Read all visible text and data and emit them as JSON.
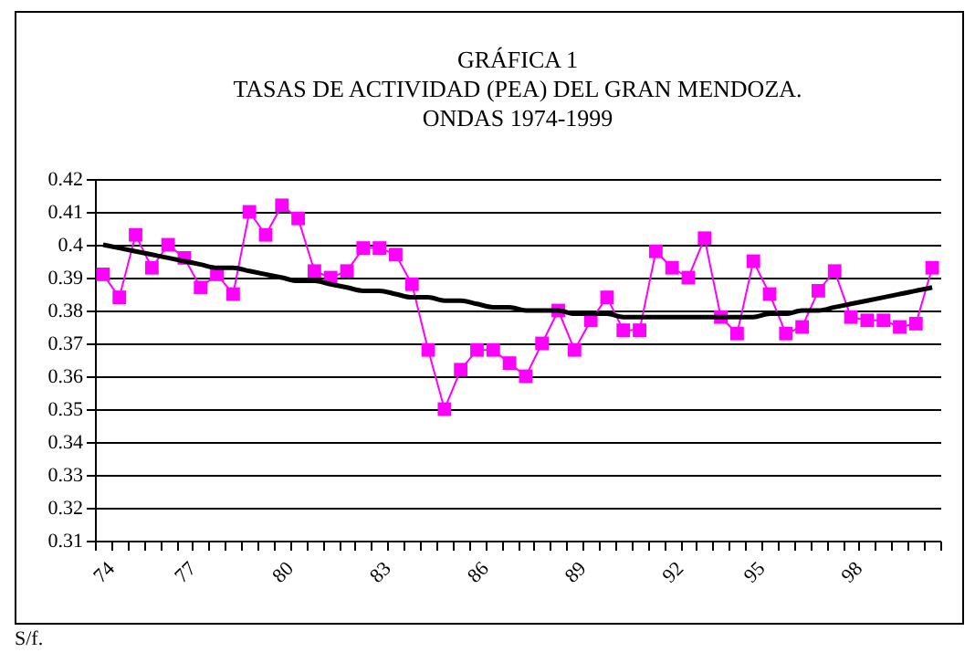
{
  "chart_data": {
    "type": "line",
    "title": "GRÁFICA 1\nTASAS DE ACTIVIDAD (PEA) DEL GRAN MENDOZA.\nONDAS 1974-1999",
    "categories": [
      "74",
      null,
      null,
      null,
      null,
      "77",
      null,
      null,
      null,
      null,
      null,
      "80",
      null,
      null,
      null,
      null,
      null,
      "83",
      null,
      null,
      null,
      null,
      null,
      "86",
      null,
      null,
      null,
      null,
      null,
      "89",
      null,
      null,
      null,
      null,
      null,
      "92",
      null,
      null,
      null,
      null,
      "95",
      null,
      null,
      null,
      null,
      null,
      "98",
      null,
      null,
      null,
      null,
      null
    ],
    "series": [
      {
        "color": "#ff00ff",
        "values": [
          0.391,
          0.384,
          0.403,
          0.393,
          0.4,
          0.396,
          0.387,
          0.391,
          0.385,
          0.41,
          0.403,
          0.412,
          0.408,
          0.392,
          0.39,
          0.392,
          0.399,
          0.399,
          0.397,
          0.388,
          0.368,
          0.35,
          0.362,
          0.368,
          0.368,
          0.364,
          0.36,
          0.37,
          0.38,
          0.368,
          0.377,
          0.384,
          0.374,
          0.374,
          0.398,
          0.393,
          0.39,
          0.402,
          0.378,
          0.373,
          0.395,
          0.385,
          0.373,
          0.375,
          0.386,
          0.392,
          0.378,
          0.377,
          0.377,
          0.375,
          0.376,
          0.393
        ]
      },
      {
        "type": "line",
        "color": "#000000",
        "marker": "none",
        "values": [
          0.4,
          0.399,
          0.398,
          0.397,
          0.396,
          0.395,
          0.394,
          0.393,
          0.393,
          0.392,
          0.391,
          0.39,
          0.389,
          0.389,
          0.388,
          0.387,
          0.386,
          0.386,
          0.385,
          0.384,
          0.384,
          0.383,
          0.383,
          0.382,
          0.381,
          0.381,
          0.38,
          0.38,
          0.38,
          0.379,
          0.379,
          0.379,
          0.378,
          0.378,
          0.378,
          0.378,
          0.378,
          0.378,
          0.378,
          0.378,
          0.378,
          0.379,
          0.379,
          0.38,
          0.38,
          0.381,
          0.382,
          0.383,
          0.384,
          0.385,
          0.386,
          0.387
        ]
      }
    ],
    "ylim": [
      0.31,
      0.42
    ],
    "yticks": [
      0.31,
      0.32,
      0.33,
      0.34,
      0.35,
      0.36,
      0.37,
      0.38,
      0.39,
      0.4,
      0.41,
      0.42
    ],
    "grid": "y",
    "marker": "square",
    "annotations": [
      "S/f."
    ]
  }
}
